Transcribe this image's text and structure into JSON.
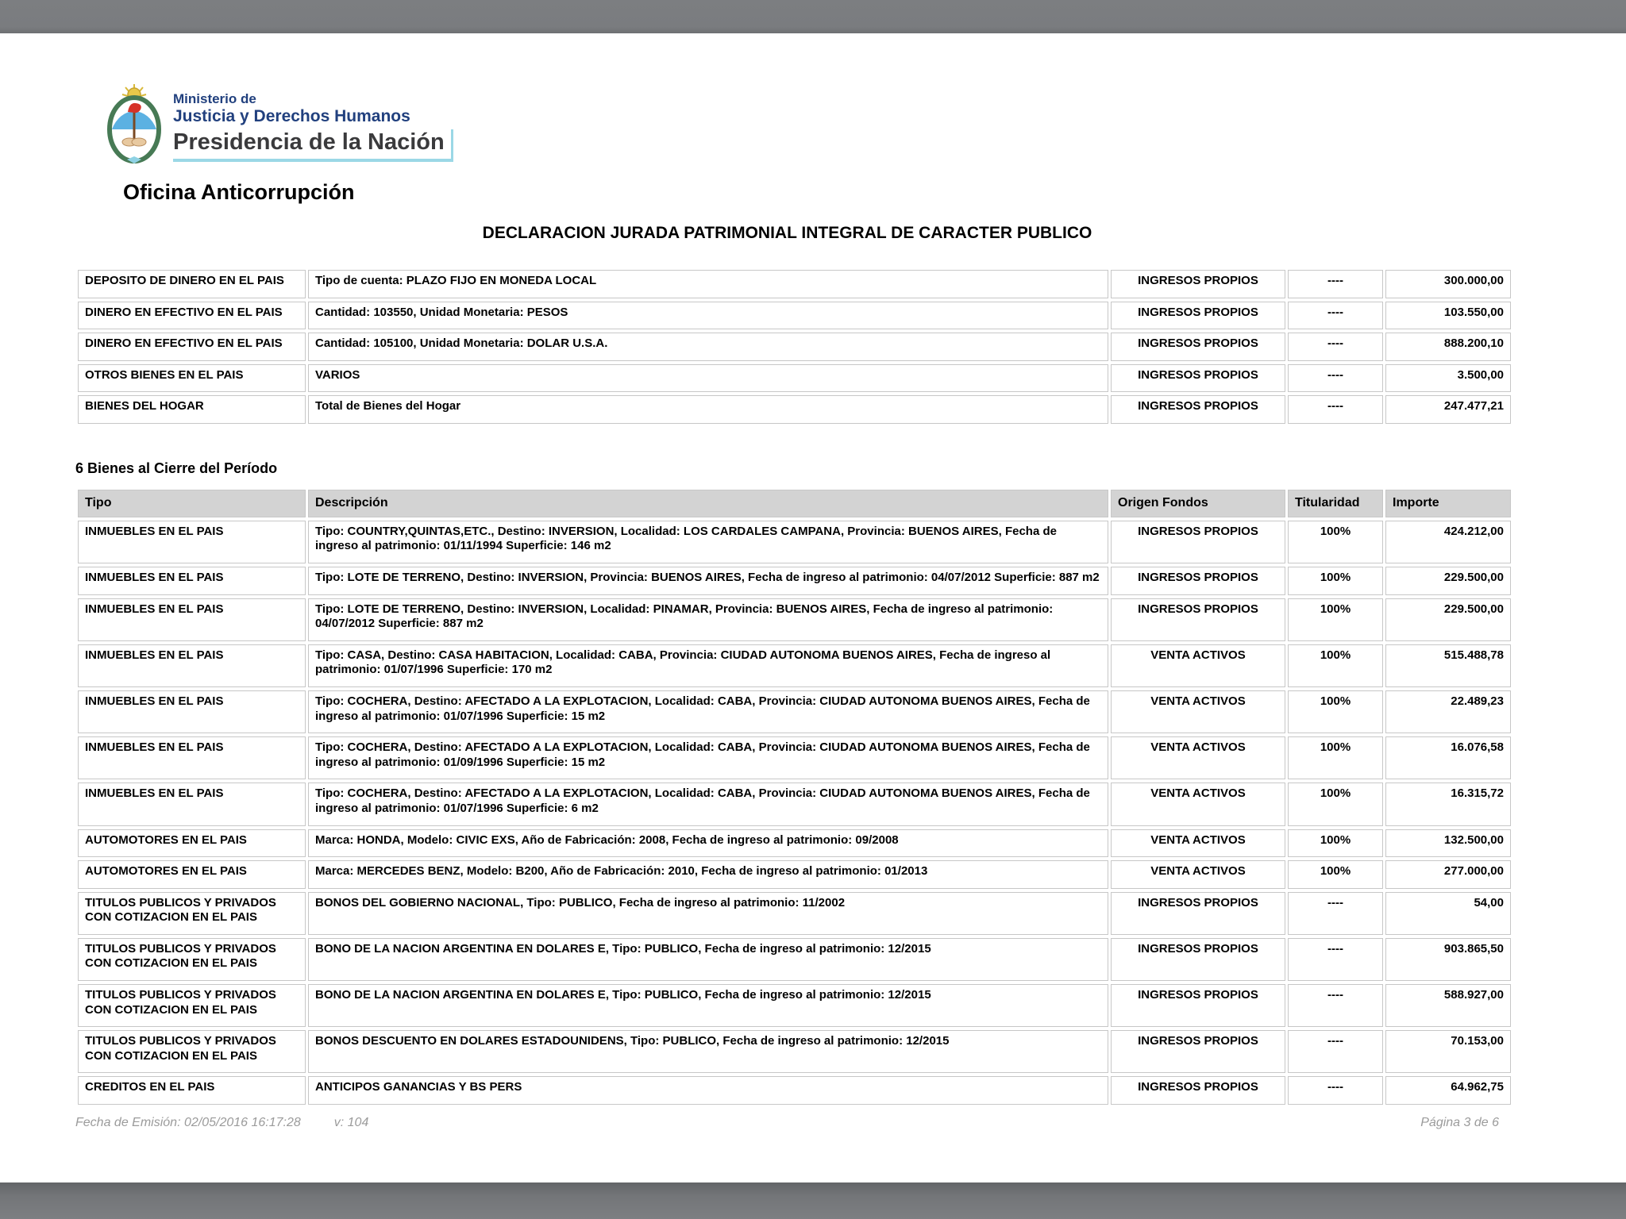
{
  "header": {
    "logo": {
      "line1": "Ministerio de",
      "line2": "Justicia y Derechos Humanos",
      "line3": "Presidencia de la Nación"
    },
    "office": "Oficina Anticorrupción",
    "doc_title": "DECLARACION JURADA PATRIMONIAL INTEGRAL DE CARACTER PUBLICO"
  },
  "table1": {
    "rows": [
      {
        "tipo": "DEPOSITO DE DINERO EN EL PAIS",
        "descripcion": "Tipo de cuenta: PLAZO FIJO EN MONEDA LOCAL",
        "origen": "INGRESOS PROPIOS",
        "titularidad": "----",
        "importe": "300.000,00"
      },
      {
        "tipo": "DINERO EN EFECTIVO EN EL PAIS",
        "descripcion": "Cantidad: 103550, Unidad Monetaria: PESOS",
        "origen": "INGRESOS PROPIOS",
        "titularidad": "----",
        "importe": "103.550,00"
      },
      {
        "tipo": "DINERO EN EFECTIVO EN EL PAIS",
        "descripcion": "Cantidad: 105100, Unidad Monetaria: DOLAR U.S.A.",
        "origen": "INGRESOS PROPIOS",
        "titularidad": "----",
        "importe": "888.200,10"
      },
      {
        "tipo": "OTROS BIENES EN EL PAIS",
        "descripcion": "VARIOS",
        "origen": "INGRESOS PROPIOS",
        "titularidad": "----",
        "importe": "3.500,00"
      },
      {
        "tipo": "BIENES DEL HOGAR",
        "descripcion": "Total de Bienes del Hogar",
        "origen": "INGRESOS PROPIOS",
        "titularidad": "----",
        "importe": "247.477,21"
      }
    ]
  },
  "section": {
    "heading": "6 Bienes al Cierre del Período"
  },
  "table2": {
    "headers": {
      "tipo": "Tipo",
      "descripcion": "Descripción",
      "origen": "Origen Fondos",
      "titularidad": "Titularidad",
      "importe": "Importe"
    },
    "rows": [
      {
        "tipo": "INMUEBLES EN EL PAIS",
        "descripcion": "Tipo: COUNTRY,QUINTAS,ETC., Destino: INVERSION, Localidad: LOS CARDALES CAMPANA, Provincia: BUENOS AIRES, Fecha de ingreso al patrimonio: 01/11/1994 Superficie: 146 m2",
        "origen": "INGRESOS PROPIOS",
        "titularidad": "100%",
        "importe": "424.212,00"
      },
      {
        "tipo": "INMUEBLES EN EL PAIS",
        "descripcion": "Tipo: LOTE DE TERRENO, Destino: INVERSION, Provincia: BUENOS AIRES, Fecha de ingreso al patrimonio: 04/07/2012 Superficie: 887 m2",
        "origen": "INGRESOS PROPIOS",
        "titularidad": "100%",
        "importe": "229.500,00"
      },
      {
        "tipo": "INMUEBLES EN EL PAIS",
        "descripcion": "Tipo: LOTE DE TERRENO, Destino: INVERSION, Localidad: PINAMAR, Provincia: BUENOS AIRES, Fecha de ingreso al patrimonio: 04/07/2012 Superficie: 887 m2",
        "origen": "INGRESOS PROPIOS",
        "titularidad": "100%",
        "importe": "229.500,00"
      },
      {
        "tipo": "INMUEBLES EN EL PAIS",
        "descripcion": "Tipo: CASA, Destino: CASA HABITACION, Localidad: CABA, Provincia: CIUDAD AUTONOMA BUENOS AIRES, Fecha de ingreso al patrimonio: 01/07/1996 Superficie: 170 m2",
        "origen": "VENTA ACTIVOS",
        "titularidad": "100%",
        "importe": "515.488,78"
      },
      {
        "tipo": "INMUEBLES EN EL PAIS",
        "descripcion": "Tipo: COCHERA, Destino: AFECTADO A LA EXPLOTACION, Localidad: CABA, Provincia: CIUDAD AUTONOMA BUENOS AIRES, Fecha de ingreso al patrimonio: 01/07/1996 Superficie: 15 m2",
        "origen": "VENTA ACTIVOS",
        "titularidad": "100%",
        "importe": "22.489,23"
      },
      {
        "tipo": "INMUEBLES EN EL PAIS",
        "descripcion": "Tipo: COCHERA, Destino: AFECTADO A LA EXPLOTACION, Localidad: CABA, Provincia: CIUDAD AUTONOMA BUENOS AIRES, Fecha de ingreso al patrimonio: 01/09/1996 Superficie: 15 m2",
        "origen": "VENTA ACTIVOS",
        "titularidad": "100%",
        "importe": "16.076,58"
      },
      {
        "tipo": "INMUEBLES EN EL PAIS",
        "descripcion": "Tipo: COCHERA, Destino: AFECTADO A LA EXPLOTACION, Localidad: CABA, Provincia: CIUDAD AUTONOMA BUENOS AIRES, Fecha de ingreso al patrimonio: 01/07/1996 Superficie: 6 m2",
        "origen": "VENTA ACTIVOS",
        "titularidad": "100%",
        "importe": "16.315,72"
      },
      {
        "tipo": "AUTOMOTORES EN EL PAIS",
        "descripcion": "Marca: HONDA, Modelo: CIVIC EXS, Año de Fabricación: 2008, Fecha de ingreso al patrimonio: 09/2008",
        "origen": "VENTA ACTIVOS",
        "titularidad": "100%",
        "importe": "132.500,00"
      },
      {
        "tipo": "AUTOMOTORES EN EL PAIS",
        "descripcion": "Marca: MERCEDES BENZ, Modelo: B200, Año de Fabricación: 2010, Fecha de ingreso al patrimonio: 01/2013",
        "origen": "VENTA ACTIVOS",
        "titularidad": "100%",
        "importe": "277.000,00"
      },
      {
        "tipo": "TITULOS PUBLICOS Y PRIVADOS CON COTIZACION EN EL PAIS",
        "descripcion": "BONOS DEL GOBIERNO NACIONAL, Tipo: PUBLICO, Fecha de ingreso al patrimonio: 11/2002",
        "origen": "INGRESOS PROPIOS",
        "titularidad": "----",
        "importe": "54,00"
      },
      {
        "tipo": "TITULOS PUBLICOS Y PRIVADOS CON COTIZACION EN EL PAIS",
        "descripcion": "BONO DE LA NACION ARGENTINA EN DOLARES E, Tipo: PUBLICO, Fecha de ingreso al patrimonio: 12/2015",
        "origen": "INGRESOS PROPIOS",
        "titularidad": "----",
        "importe": "903.865,50"
      },
      {
        "tipo": "TITULOS PUBLICOS Y PRIVADOS CON COTIZACION EN EL PAIS",
        "descripcion": "BONO DE LA NACION ARGENTINA EN DOLARES E, Tipo: PUBLICO, Fecha de ingreso al patrimonio: 12/2015",
        "origen": "INGRESOS PROPIOS",
        "titularidad": "----",
        "importe": "588.927,00"
      },
      {
        "tipo": "TITULOS PUBLICOS Y PRIVADOS CON COTIZACION EN EL PAIS",
        "descripcion": "BONOS DESCUENTO EN DOLARES ESTADOUNIDENS, Tipo: PUBLICO, Fecha de ingreso al patrimonio: 12/2015",
        "origen": "INGRESOS PROPIOS",
        "titularidad": "----",
        "importe": "70.153,00"
      },
      {
        "tipo": "CREDITOS EN EL PAIS",
        "descripcion": "ANTICIPOS GANANCIAS Y BS PERS",
        "origen": "INGRESOS PROPIOS",
        "titularidad": "----",
        "importe": "64.962,75"
      }
    ]
  },
  "footer": {
    "emission": "Fecha de Emisión: 02/05/2016 16:17:28",
    "version": "v: 104",
    "page": "Página 3 de 6"
  },
  "colors": {
    "chrome_gray": "#7a7c7f",
    "table_border": "#c7c7c7",
    "header_bg": "#d3d3d3",
    "logo_navy": "#21407e",
    "logo_teal": "#9bd8e6",
    "footer_gray": "#9b9b9b"
  }
}
